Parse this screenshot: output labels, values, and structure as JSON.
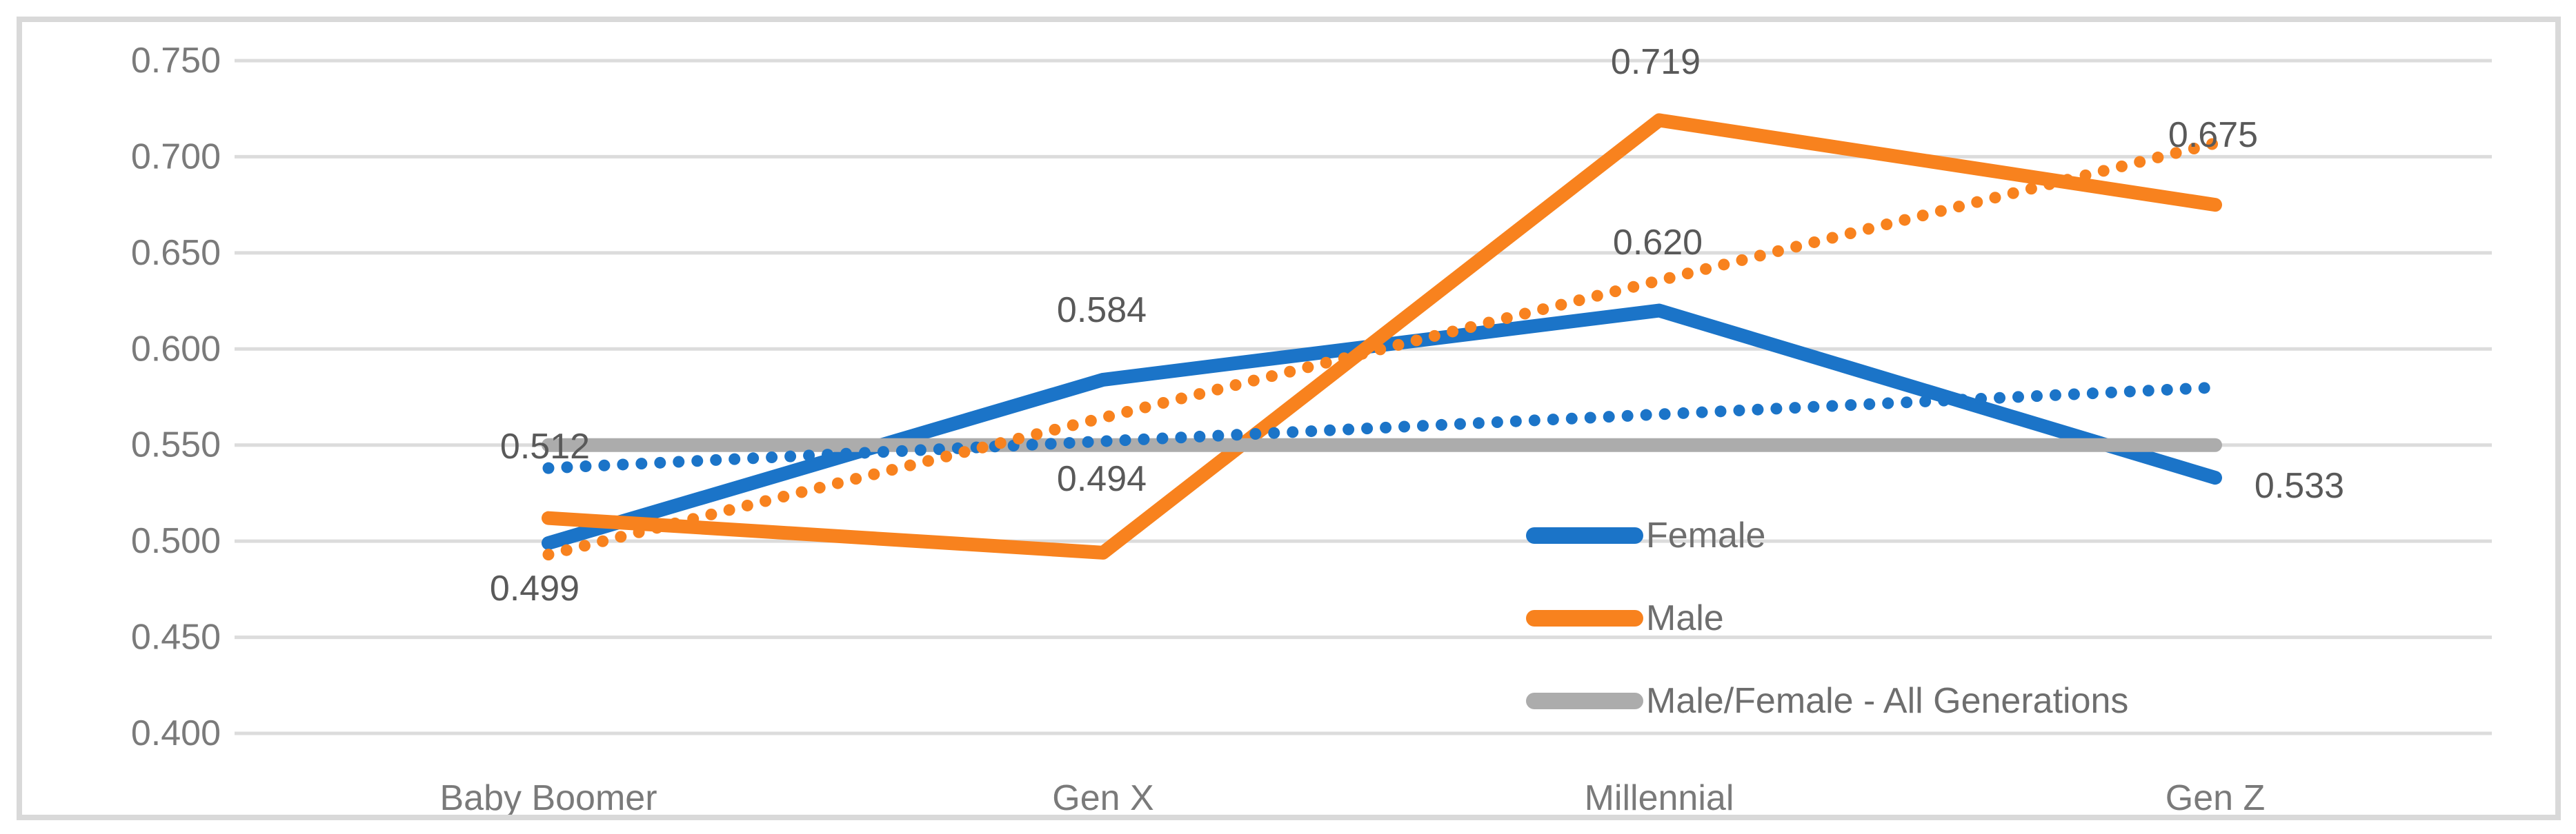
{
  "figure": {
    "background": "#FFFFFF",
    "border_color": "#D9D9D9"
  },
  "chart_data": {
    "type": "line",
    "title": "",
    "categories": [
      "Baby Boomer",
      "Gen X",
      "Millennial",
      "Gen Z"
    ],
    "series": [
      {
        "name": "Female",
        "color": "#1B74C8",
        "style": "solid",
        "values": [
          0.499,
          0.584,
          0.62,
          0.533
        ],
        "labels": [
          "0.499",
          "0.584",
          "0.620",
          "0.533"
        ]
      },
      {
        "name": "Male",
        "color": "#F8821E",
        "style": "solid",
        "values": [
          0.512,
          0.494,
          0.719,
          0.675
        ],
        "labels": [
          "0.512",
          "0.494",
          "0.719",
          "0.675"
        ]
      },
      {
        "name": "Male/Female - All Generations",
        "color": "#ACACAC",
        "style": "solid",
        "values": [
          0.55,
          0.55,
          0.55,
          0.55
        ],
        "labels": []
      },
      {
        "name": "Female linear trendline",
        "color": "#1B74C8",
        "style": "dotted",
        "values": [
          0.538,
          0.58
        ],
        "labels": []
      },
      {
        "name": "Male linear trendline",
        "color": "#F8821E",
        "style": "dotted",
        "values": [
          0.493,
          0.707
        ],
        "labels": []
      }
    ],
    "ylim": [
      0.4,
      0.75
    ],
    "ytick_step": 0.05,
    "ytick_labels": [
      "0.750",
      "0.700",
      "0.650",
      "0.600",
      "0.550",
      "0.500",
      "0.450",
      "0.400"
    ],
    "grid": true,
    "gridline_color": "#DCDCDC",
    "axis_label_color": "#7A7A7A",
    "data_label_color": "#595959",
    "legend_position": "inside-bottom-right"
  },
  "legend": {
    "items": [
      {
        "label": "Female",
        "color": "#1B74C8"
      },
      {
        "label": "Male",
        "color": "#F8821E"
      },
      {
        "label": "Male/Female - All Generations",
        "color": "#ACACAC"
      }
    ]
  }
}
